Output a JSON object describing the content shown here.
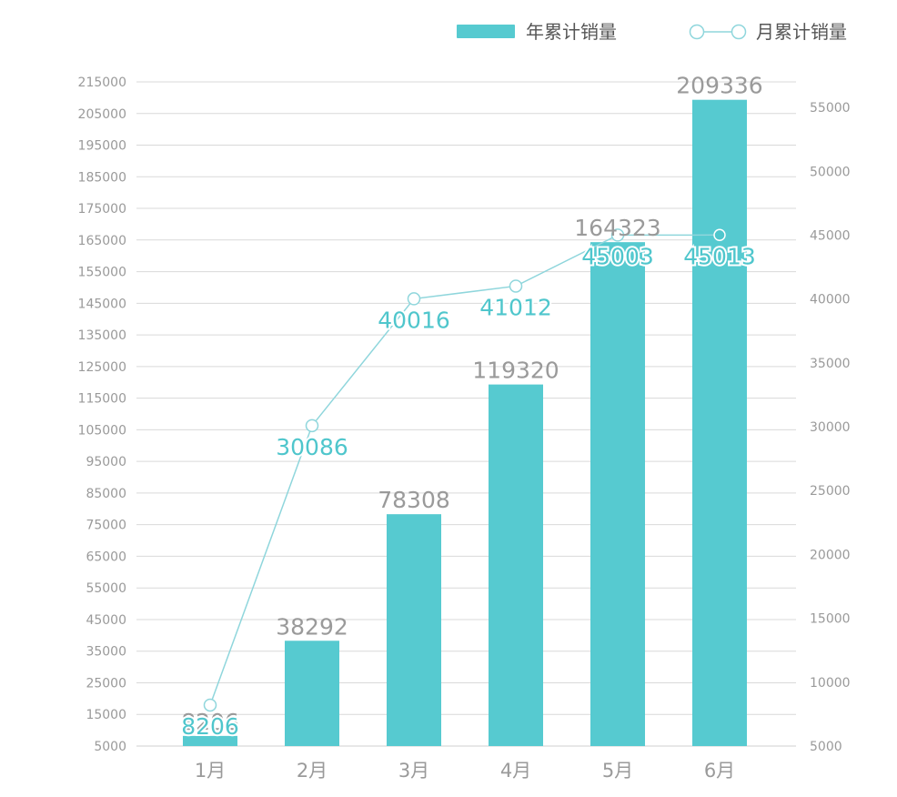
{
  "colors": {
    "bar": "#56cad0",
    "line": "#8fd6dc",
    "line_label": "#4fc6cc",
    "bar_label": "#9a9a9a",
    "grid": "#d9d9d9",
    "axis_text": "#9a9a9a"
  },
  "chart_data": {
    "type": "bar",
    "categories": [
      "1月",
      "2月",
      "3月",
      "4月",
      "5月",
      "6月"
    ],
    "legend_position": "top-right",
    "grid": true,
    "series": [
      {
        "name": "年累计销量",
        "kind": "bar",
        "axis": "left",
        "values": [
          8206,
          38292,
          78308,
          119320,
          164323,
          209336
        ]
      },
      {
        "name": "月累计销量",
        "kind": "line",
        "axis": "right",
        "values": [
          8206,
          30086,
          40016,
          41012,
          45003,
          45013
        ]
      }
    ],
    "y_left": {
      "ticks": [
        5000,
        15000,
        25000,
        35000,
        45000,
        55000,
        65000,
        75000,
        85000,
        95000,
        105000,
        115000,
        125000,
        135000,
        145000,
        155000,
        165000,
        175000,
        185000,
        195000,
        205000,
        215000
      ],
      "ylim": [
        5000,
        215000
      ]
    },
    "y_right": {
      "ticks": [
        5000,
        10000,
        15000,
        20000,
        25000,
        30000,
        35000,
        40000,
        45000,
        50000,
        55000
      ],
      "ylim": [
        5000,
        57000
      ]
    }
  }
}
